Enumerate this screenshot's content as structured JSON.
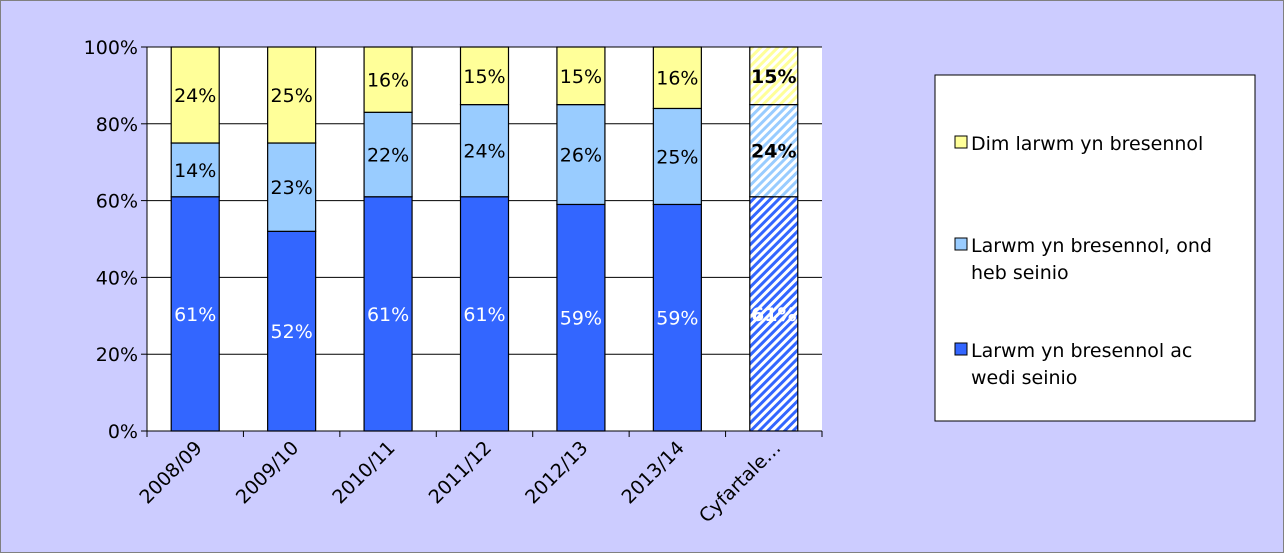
{
  "colors": {
    "frame_background": "#ccccff",
    "plot_background": "#ffffff",
    "axis": "#000000",
    "gridline": "#000000",
    "series_top": "#ffff99",
    "series_middle": "#99ccff",
    "series_bottom": "#3366ff"
  },
  "chart_data": {
    "type": "bar",
    "stacked": true,
    "percent_stacked": true,
    "title": "",
    "xlabel": "",
    "ylabel": "",
    "categories": [
      "2008/09",
      "2009/10",
      "2010/11",
      "2011/12",
      "2012/13",
      "2013/14",
      "Cyfartale…"
    ],
    "series": [
      {
        "name": "Larwm yn bresennol ac wedi seinio",
        "values": [
          61,
          52,
          61,
          61,
          59,
          59,
          61
        ],
        "labels": [
          "61%",
          "52%",
          "61%",
          "61%",
          "59%",
          "59%",
          "61%"
        ]
      },
      {
        "name": "Larwm yn bresennol, ond heb seinio",
        "values": [
          14,
          23,
          22,
          24,
          26,
          25,
          24
        ],
        "labels": [
          "14%",
          "23%",
          "22%",
          "24%",
          "26%",
          "25%",
          "24%"
        ]
      },
      {
        "name": "Dim larwm yn bresennol",
        "values": [
          24,
          25,
          16,
          15,
          15,
          16,
          15
        ],
        "labels": [
          "24%",
          "25%",
          "16%",
          "15%",
          "15%",
          "16%",
          "15%"
        ]
      }
    ],
    "highlight_last_category": {
      "pattern": "diagonal-hatch",
      "bold_labels": true
    },
    "ylim": [
      0,
      100
    ],
    "y_ticks": [
      0,
      20,
      40,
      60,
      80,
      100
    ],
    "y_tick_labels": [
      "0%",
      "20%",
      "40%",
      "60%",
      "80%",
      "100%"
    ],
    "grid": "horizontal",
    "legend": {
      "placement": "right",
      "entries": [
        "Dim larwm yn bresennol",
        "Larwm yn bresennol, ond heb seinio",
        "Larwm yn bresennol ac wedi seinio"
      ],
      "entry_lines": [
        [
          "Dim larwm yn bresennol"
        ],
        [
          "Larwm yn bresennol, ond",
          "heb seinio"
        ],
        [
          "Larwm yn bresennol ac",
          "wedi seinio"
        ]
      ]
    }
  }
}
